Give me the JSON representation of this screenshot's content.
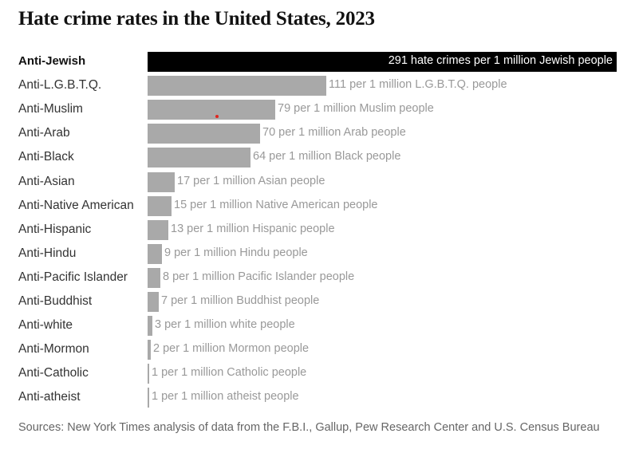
{
  "chart_data": {
    "type": "bar",
    "orientation": "horizontal",
    "title": "Hate crime rates in the United States, 2023",
    "highlight_color": "#000000",
    "bar_color": "#a9a9a9",
    "xlim": [
      0,
      291
    ],
    "items": [
      {
        "category": "Anti-Jewish",
        "value": 291,
        "label": "291 hate crimes per 1 million Jewish people",
        "highlight": true
      },
      {
        "category": "Anti-L.G.B.T.Q.",
        "value": 111,
        "label": "111 per 1 million L.G.B.T.Q. people"
      },
      {
        "category": "Anti-Muslim",
        "value": 79,
        "label": "79 per 1 million Muslim people"
      },
      {
        "category": "Anti-Arab",
        "value": 70,
        "label": "70 per 1 million Arab people"
      },
      {
        "category": "Anti-Black",
        "value": 64,
        "label": "64 per 1 million Black people"
      },
      {
        "category": "Anti-Asian",
        "value": 17,
        "label": "17 per 1 million Asian people"
      },
      {
        "category": "Anti-Native American",
        "value": 15,
        "label": "15 per 1 million Native American people"
      },
      {
        "category": "Anti-Hispanic",
        "value": 13,
        "label": "13 per 1 million Hispanic people"
      },
      {
        "category": "Anti-Hindu",
        "value": 9,
        "label": "9 per 1 million Hindu people"
      },
      {
        "category": "Anti-Pacific Islander",
        "value": 8,
        "label": "8 per 1 million Pacific Islander people"
      },
      {
        "category": "Anti-Buddhist",
        "value": 7,
        "label": "7 per 1 million Buddhist people"
      },
      {
        "category": "Anti-white",
        "value": 3,
        "label": "3 per 1 million white people"
      },
      {
        "category": "Anti-Mormon",
        "value": 2,
        "label": "2 per 1 million Mormon people"
      },
      {
        "category": "Anti-Catholic",
        "value": 1,
        "label": "1 per 1 million Catholic people"
      },
      {
        "category": "Anti-atheist",
        "value": 1,
        "label": "1 per 1 million atheist people"
      }
    ],
    "source": "Sources: New York Times analysis of data from the F.B.I., Gallup, Pew Research Center and U.S. Census Bureau"
  }
}
